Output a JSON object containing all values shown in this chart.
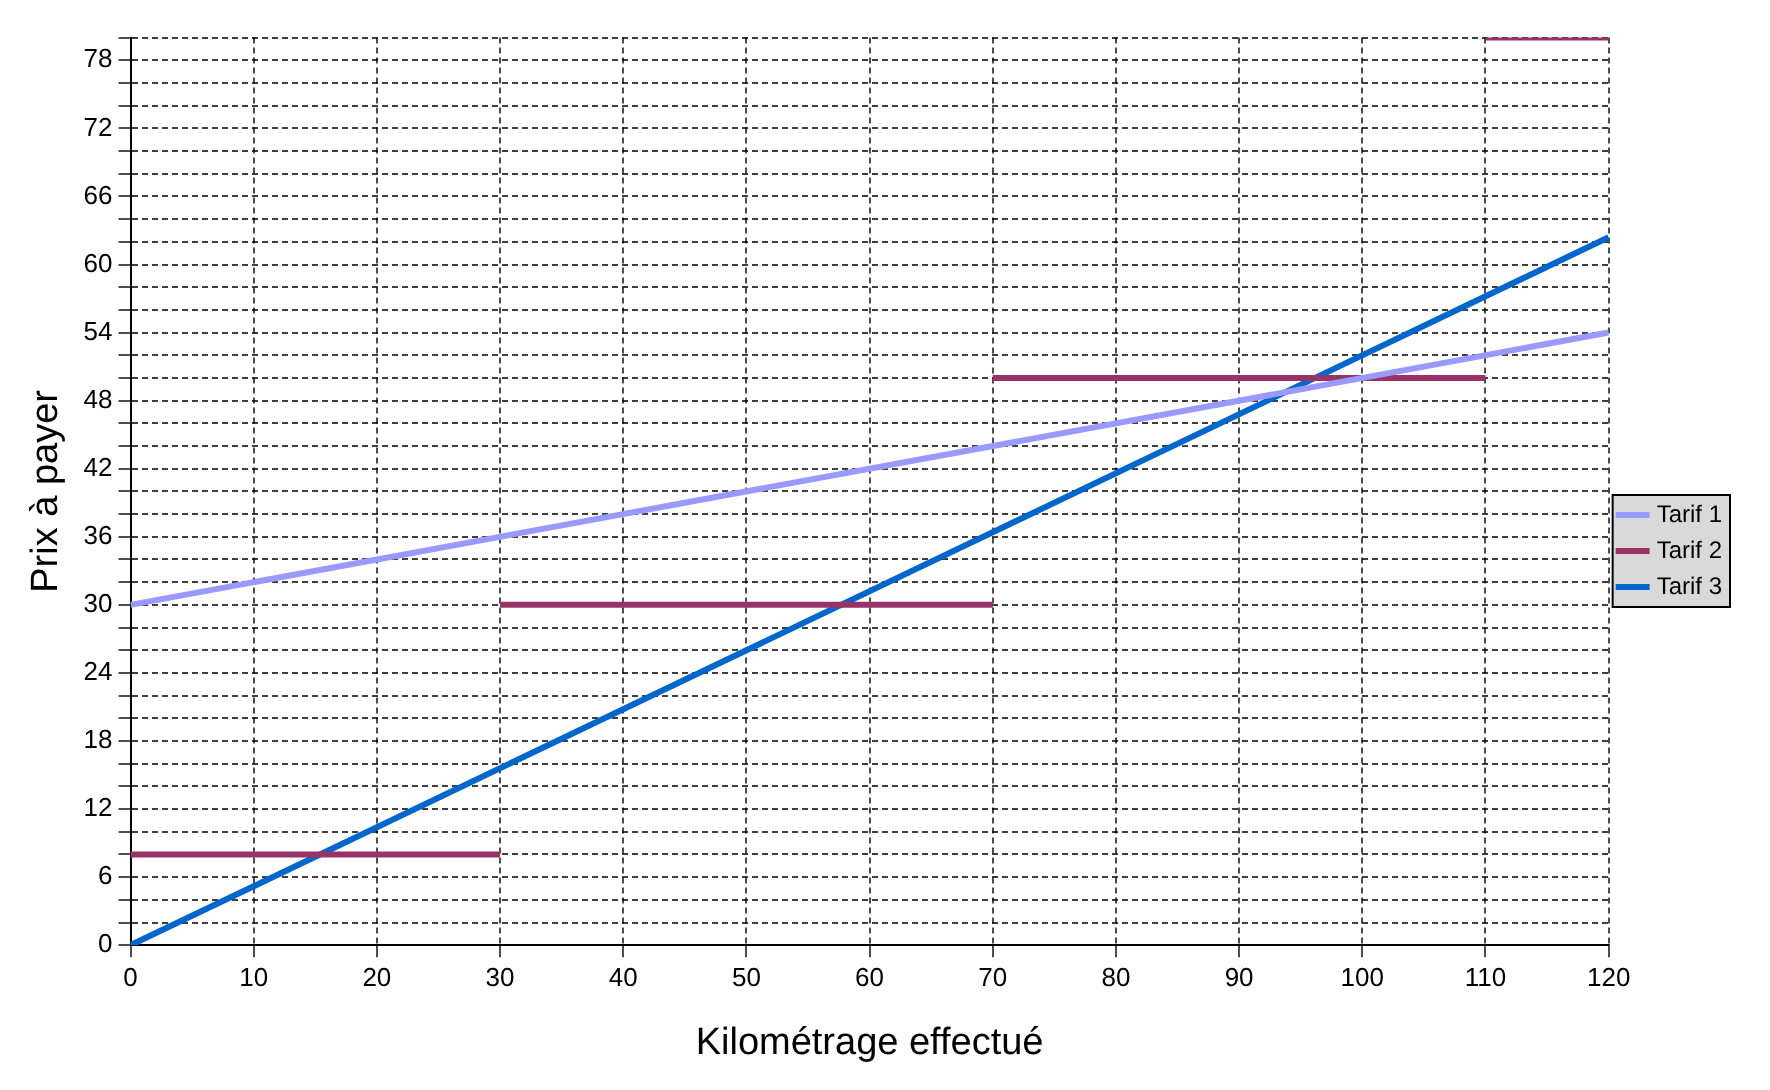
{
  "chart_data": {
    "type": "line",
    "xlabel": "Kilométrage effectué",
    "ylabel": "Prix à payer",
    "series": [
      {
        "name": "Tarif 1",
        "color": "#9999ff",
        "x": [
          0,
          120
        ],
        "values": [
          30,
          54
        ]
      },
      {
        "name": "Tarif 2",
        "color": "#993366",
        "x": [
          0,
          30
        ],
        "values": [
          8,
          8
        ]
      },
      {
        "color": "#993366",
        "x": [
          30,
          70
        ],
        "values": [
          30,
          30
        ]
      },
      {
        "color": "#993366",
        "x": [
          70,
          110
        ],
        "values": [
          50,
          50
        ]
      },
      {
        "color": "#993366",
        "x": [
          110,
          120
        ],
        "values": [
          80,
          80
        ]
      },
      {
        "name": "Tarif 3",
        "color": "#0066cc",
        "x": [
          0,
          120
        ],
        "values": [
          0,
          62.4
        ]
      }
    ],
    "xlim": [
      0,
      120
    ],
    "xticks": [
      0,
      10,
      20,
      30,
      40,
      50,
      60,
      70,
      80,
      90,
      100,
      110,
      120
    ],
    "ylim": [
      0,
      80
    ],
    "yticks": [
      0,
      {
        "value": 2,
        "label": null
      },
      {
        "value": 4,
        "label": null
      },
      6,
      {
        "value": 8,
        "label": null
      },
      {
        "value": 10,
        "label": null
      },
      12,
      {
        "value": 14,
        "label": null
      },
      {
        "value": 16,
        "label": null
      },
      18,
      {
        "value": 20,
        "label": null
      },
      {
        "value": 22,
        "label": null
      },
      24,
      {
        "value": 26,
        "label": null
      },
      {
        "value": 28,
        "label": null
      },
      30,
      {
        "value": 32,
        "label": null
      },
      {
        "value": 34,
        "label": null
      },
      36,
      {
        "value": 38,
        "label": null
      },
      {
        "value": 40,
        "label": null
      },
      42,
      {
        "value": 44,
        "label": null
      },
      {
        "value": 46,
        "label": null
      },
      48,
      {
        "value": 50,
        "label": null
      },
      {
        "value": 52,
        "label": null
      },
      54,
      {
        "value": 56,
        "label": null
      },
      {
        "value": 58,
        "label": null
      },
      60,
      {
        "value": 62,
        "label": null
      },
      {
        "value": 64,
        "label": null
      },
      66,
      {
        "value": 68,
        "label": null
      },
      {
        "value": 70,
        "label": null
      },
      72,
      {
        "value": 74,
        "label": null
      },
      {
        "value": 76,
        "label": null
      },
      78,
      {
        "value": 80,
        "label": null
      }
    ],
    "grid": true,
    "legend": "right",
    "line_style": "solid",
    "marker": "none"
  }
}
